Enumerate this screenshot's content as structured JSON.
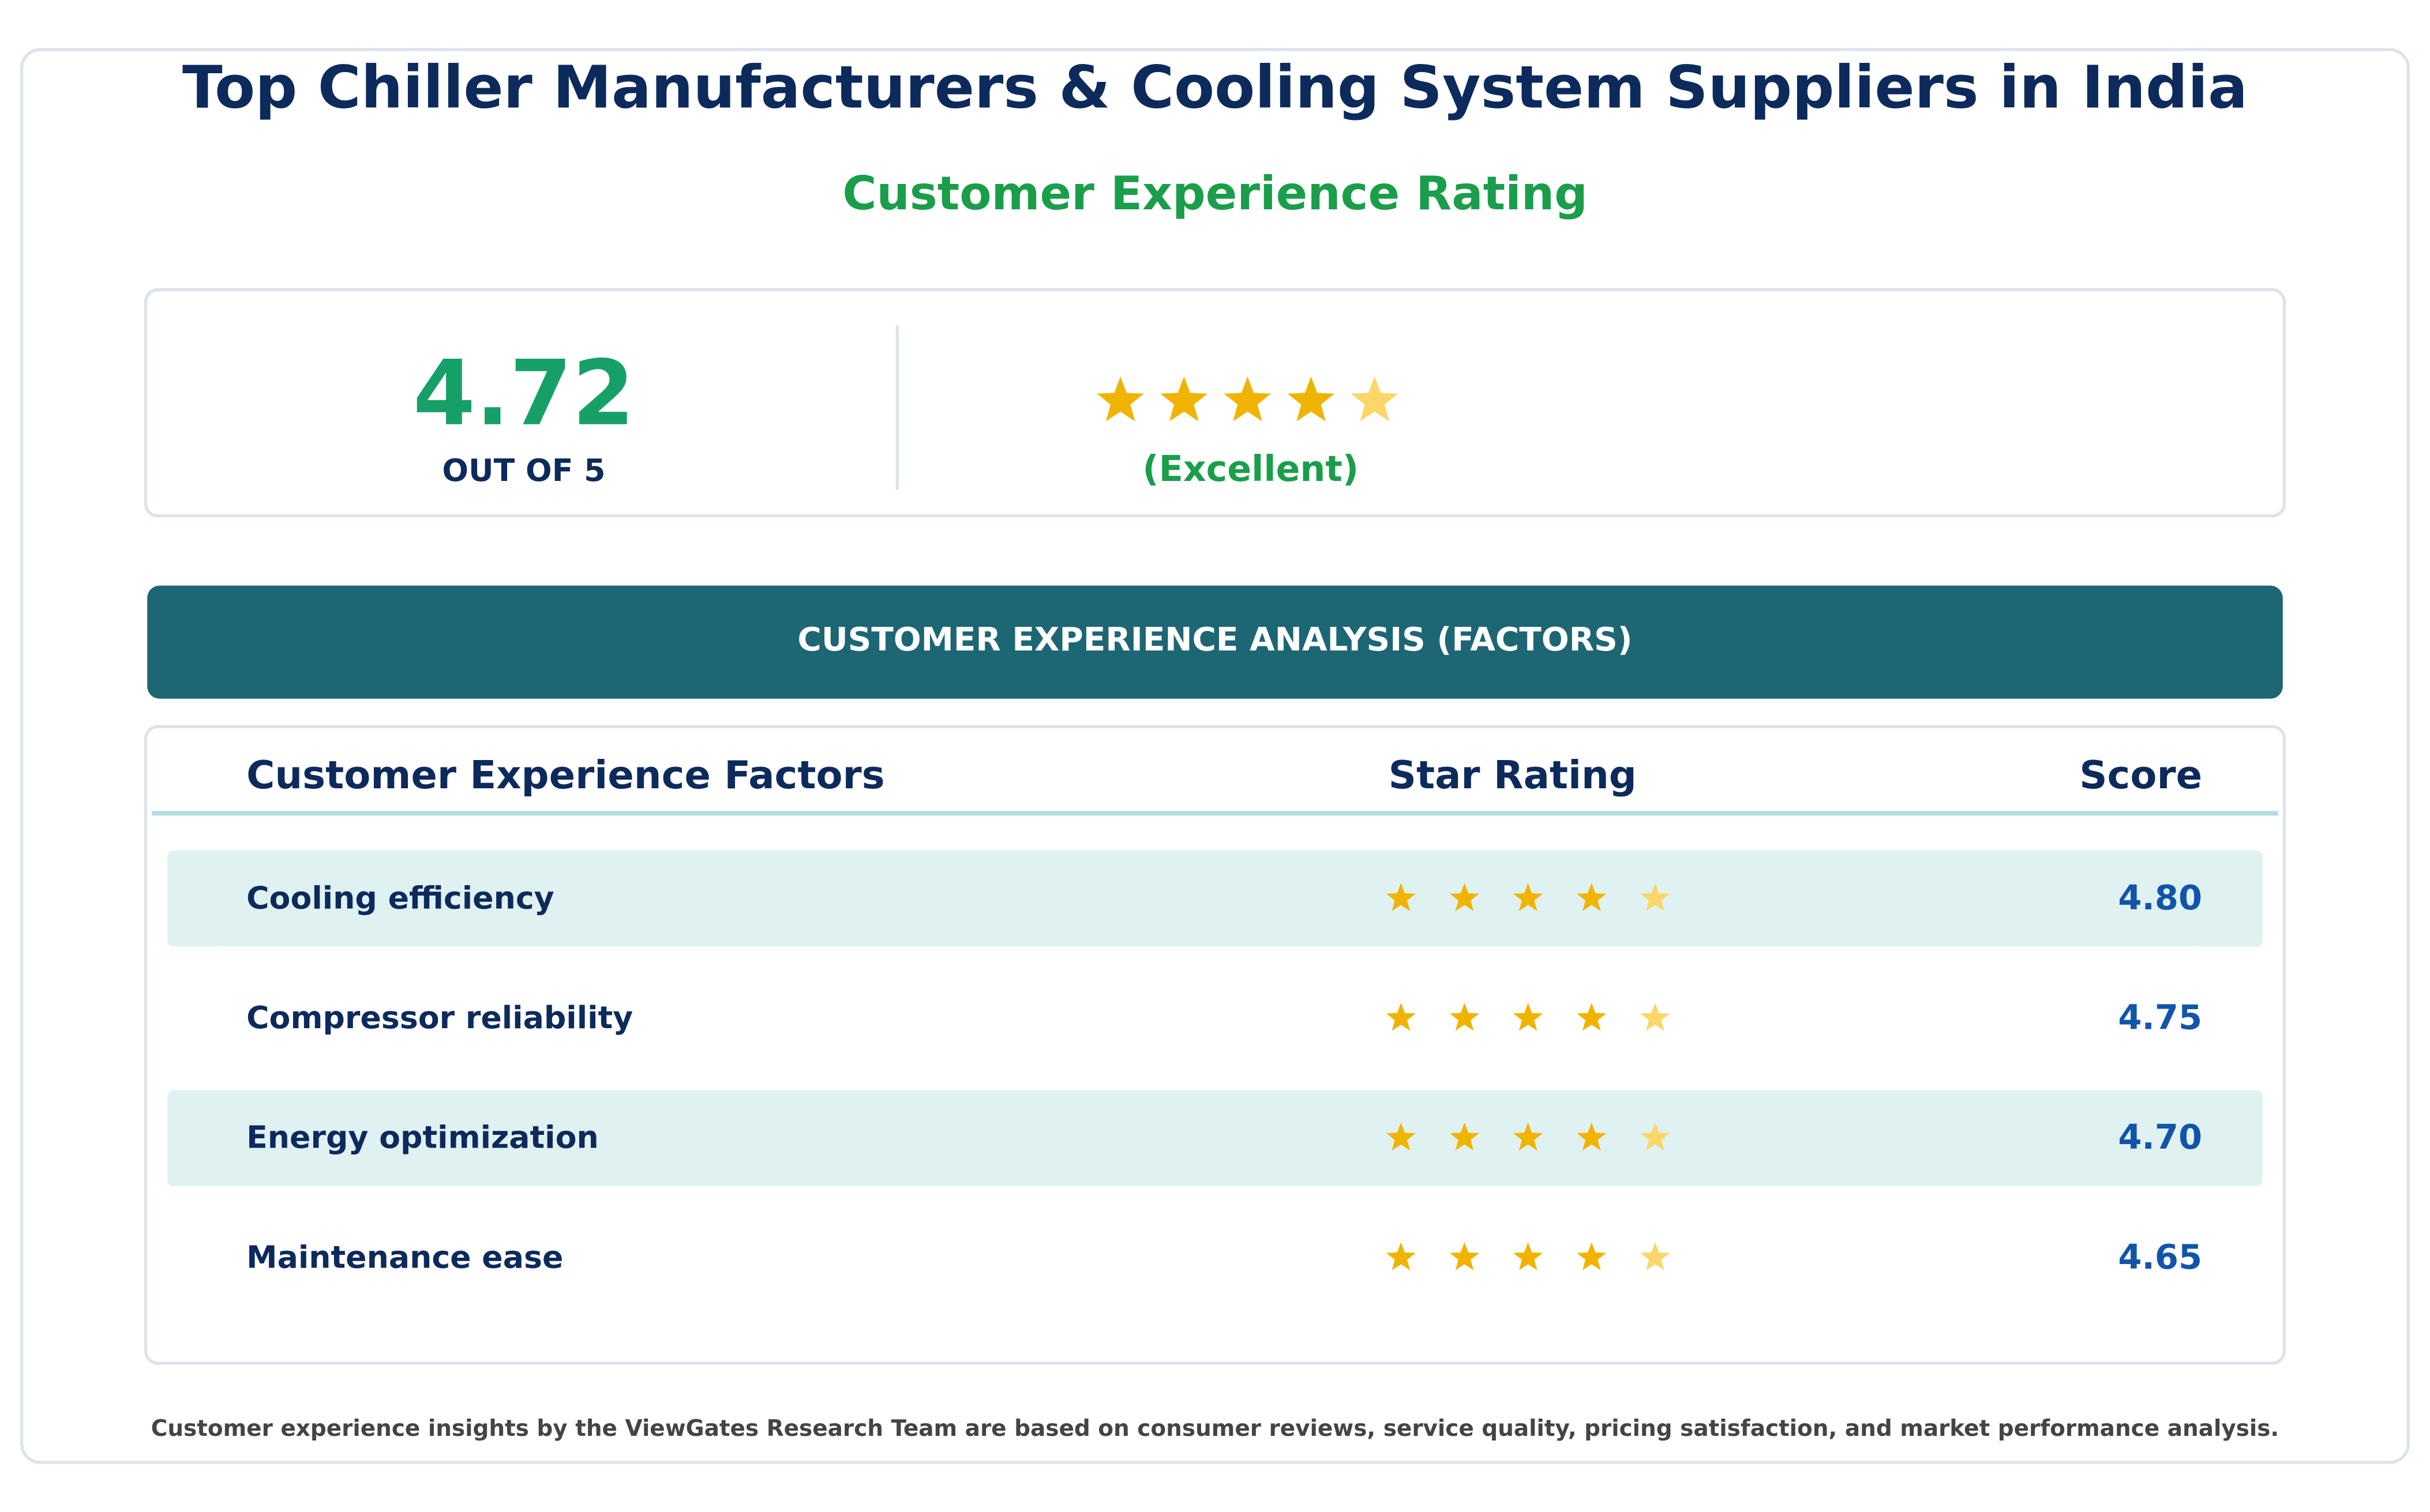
{
  "header": {
    "title": "Top Chiller Manufacturers & Cooling System Suppliers in India",
    "subtitle": "Customer Experience Rating"
  },
  "summary": {
    "score": "4.72",
    "scale": "OUT OF 5",
    "verdict": "(Excellent)"
  },
  "banner": "CUSTOMER EXPERIENCE ANALYSIS (FACTORS)",
  "table": {
    "columns": [
      "Customer Experience Factors",
      "Star Rating",
      "Score"
    ],
    "rows": [
      [
        "Cooling efficiency",
        "4.80"
      ],
      [
        "Compressor reliability",
        "4.75"
      ],
      [
        "Energy optimization",
        "4.70"
      ],
      [
        "Maintenance ease",
        "4.65"
      ]
    ]
  },
  "footer": "Customer experience insights by the ViewGates Research Team are based on consumer reviews, service quality, pricing satisfaction, and market performance analysis."
}
